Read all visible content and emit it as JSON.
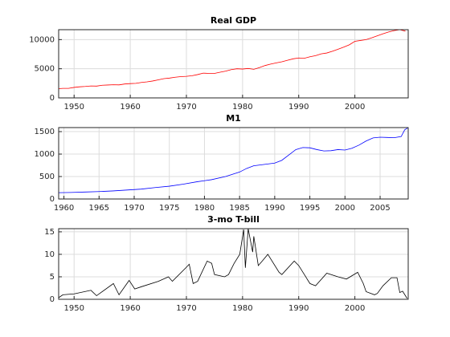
{
  "chart_data": [
    {
      "type": "line",
      "title": "Real GDP",
      "color": "#ff0000",
      "grid": true,
      "x": [
        1947,
        1948,
        1949,
        1950,
        1951,
        1952,
        1953,
        1954,
        1955,
        1956,
        1957,
        1958,
        1959,
        1960,
        1961,
        1962,
        1963,
        1964,
        1965,
        1966,
        1967,
        1968,
        1969,
        1970,
        1971,
        1972,
        1973,
        1974,
        1975,
        1976,
        1977,
        1978,
        1979,
        1980,
        1981,
        1982,
        1983,
        1984,
        1985,
        1986,
        1987,
        1988,
        1989,
        1990,
        1991,
        1992,
        1993,
        1994,
        1995,
        1996,
        1997,
        1998,
        1999,
        2000,
        2001,
        2002,
        2003,
        2004,
        2005,
        2006,
        2007,
        2008,
        2009
      ],
      "values": [
        1570,
        1640,
        1630,
        1800,
        1900,
        1960,
        2050,
        2020,
        2170,
        2210,
        2250,
        2230,
        2380,
        2450,
        2500,
        2650,
        2750,
        2900,
        3100,
        3300,
        3400,
        3550,
        3650,
        3700,
        3800,
        4000,
        4250,
        4200,
        4200,
        4400,
        4600,
        4850,
        5000,
        4950,
        5050,
        4900,
        5200,
        5550,
        5800,
        6000,
        6200,
        6450,
        6700,
        6850,
        6800,
        7050,
        7250,
        7550,
        7700,
        8000,
        8350,
        8700,
        9100,
        9700,
        9850,
        10000,
        10300,
        10650,
        11000,
        11300,
        11550,
        11700,
        11450
      ],
      "xlim": [
        1947.25,
        2009.5
      ],
      "xticks": [
        1950,
        1960,
        1970,
        1980,
        1990,
        2000
      ],
      "ylim": [
        0,
        11700
      ],
      "yticks": [
        0,
        5000,
        10000
      ]
    },
    {
      "type": "line",
      "title": "M1",
      "color": "#0000ff",
      "grid": true,
      "x": [
        1959.3,
        1961,
        1963,
        1965,
        1967,
        1969,
        1971,
        1973,
        1975,
        1977,
        1979,
        1981,
        1983,
        1985,
        1986,
        1987,
        1988,
        1989,
        1990,
        1991,
        1992,
        1993,
        1994,
        1995,
        1996,
        1997,
        1998,
        1999,
        2000,
        2001,
        2002,
        2003,
        2004,
        2005,
        2006,
        2007,
        2008,
        2008.5,
        2008.9
      ],
      "values": [
        140,
        145,
        155,
        165,
        180,
        200,
        220,
        255,
        285,
        330,
        385,
        430,
        500,
        600,
        680,
        740,
        760,
        780,
        800,
        860,
        980,
        1100,
        1145,
        1140,
        1100,
        1070,
        1075,
        1100,
        1090,
        1130,
        1200,
        1290,
        1360,
        1375,
        1370,
        1365,
        1390,
        1540,
        1580
      ],
      "xlim": [
        1959.25,
        2009
      ],
      "xticks": [
        1960,
        1965,
        1970,
        1975,
        1980,
        1985,
        1990,
        1995,
        2000,
        2005
      ],
      "ylim": [
        0,
        1590
      ],
      "yticks": [
        0,
        500,
        1000,
        1500
      ]
    },
    {
      "type": "line",
      "title": "3-mo T-bill",
      "color": "#000000",
      "grid": true,
      "x": [
        1947.3,
        1948,
        1950,
        1953,
        1954,
        1957,
        1958,
        1959.8,
        1960.8,
        1962,
        1965,
        1966.8,
        1967.5,
        1969.9,
        1970.5,
        1971.2,
        1972,
        1973.7,
        1974.5,
        1975,
        1976.8,
        1977.5,
        1978.5,
        1979.5,
        1980.2,
        1980.5,
        1981,
        1981.8,
        1982,
        1982.8,
        1983.5,
        1984.5,
        1986.5,
        1987,
        1989.2,
        1990,
        1992,
        1993,
        1995,
        1997,
        1998.5,
        2000.5,
        2001.5,
        2002,
        2003.5,
        2004,
        2005,
        2006.5,
        2007.5,
        2008,
        2008.5,
        2009.3
      ],
      "values": [
        0.4,
        1.0,
        1.2,
        2.0,
        0.8,
        3.5,
        1.0,
        4.2,
        2.3,
        2.8,
        4.0,
        5.0,
        4.0,
        7.0,
        7.8,
        3.5,
        4.0,
        8.5,
        8.0,
        5.5,
        5.0,
        5.5,
        8.0,
        10.0,
        15.5,
        7.0,
        15.7,
        10.5,
        14.0,
        7.5,
        8.5,
        10.0,
        6.0,
        5.5,
        8.5,
        7.5,
        3.5,
        3.0,
        5.8,
        5.0,
        4.5,
        6.0,
        3.5,
        1.7,
        1.0,
        1.3,
        3.0,
        4.8,
        4.8,
        1.5,
        1.8,
        0.2
      ],
      "xlim": [
        1947.25,
        2009.5
      ],
      "xticks": [
        1950,
        1960,
        1970,
        1980,
        1990,
        2000
      ],
      "ylim": [
        0,
        15.7
      ],
      "yticks": [
        0,
        5,
        10,
        15
      ]
    }
  ]
}
